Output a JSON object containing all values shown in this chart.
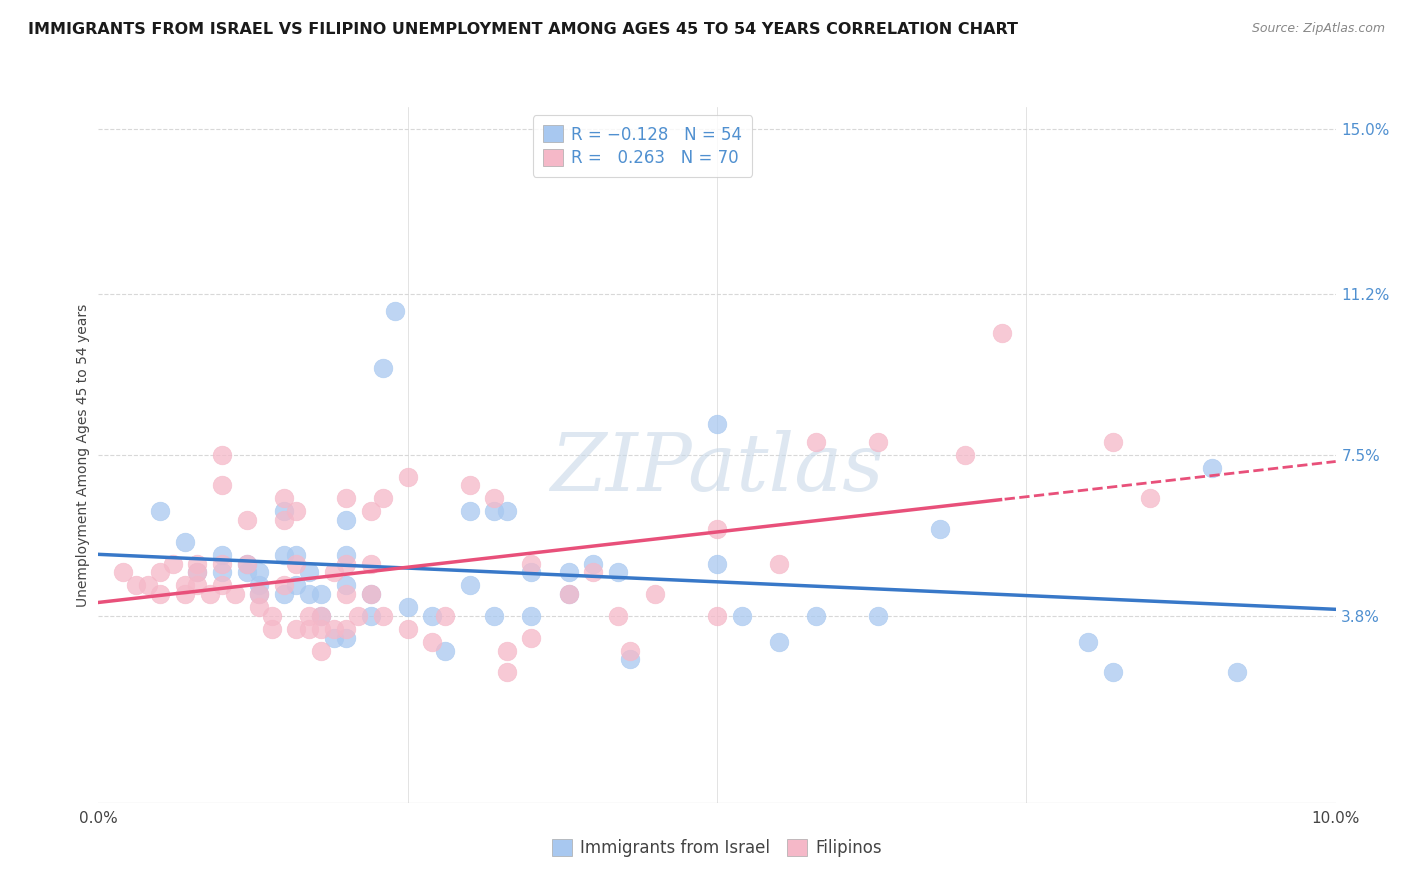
{
  "title": "IMMIGRANTS FROM ISRAEL VS FILIPINO UNEMPLOYMENT AMONG AGES 45 TO 54 YEARS CORRELATION CHART",
  "source": "Source: ZipAtlas.com",
  "ylabel": "Unemployment Among Ages 45 to 54 years",
  "xlim": [
    0.0,
    0.1
  ],
  "ylim": [
    -0.005,
    0.155
  ],
  "yticks": [
    0.038,
    0.075,
    0.112,
    0.15
  ],
  "ytick_labels": [
    "3.8%",
    "7.5%",
    "11.2%",
    "15.0%"
  ],
  "blue_color": "#a8c8f0",
  "pink_color": "#f5b8c8",
  "blue_line_color": "#3878c8",
  "pink_line_color": "#e8507a",
  "legend_blue_label": "Immigrants from Israel",
  "legend_pink_label": "Filipinos",
  "R_blue": -0.128,
  "N_blue": 54,
  "R_pink": 0.263,
  "N_pink": 70,
  "blue_scatter": [
    [
      0.005,
      0.062
    ],
    [
      0.007,
      0.055
    ],
    [
      0.008,
      0.048
    ],
    [
      0.01,
      0.052
    ],
    [
      0.01,
      0.048
    ],
    [
      0.012,
      0.048
    ],
    [
      0.012,
      0.05
    ],
    [
      0.013,
      0.048
    ],
    [
      0.013,
      0.043
    ],
    [
      0.013,
      0.045
    ],
    [
      0.015,
      0.043
    ],
    [
      0.015,
      0.062
    ],
    [
      0.015,
      0.052
    ],
    [
      0.016,
      0.052
    ],
    [
      0.016,
      0.045
    ],
    [
      0.017,
      0.048
    ],
    [
      0.017,
      0.043
    ],
    [
      0.018,
      0.043
    ],
    [
      0.018,
      0.038
    ],
    [
      0.019,
      0.033
    ],
    [
      0.02,
      0.06
    ],
    [
      0.02,
      0.052
    ],
    [
      0.02,
      0.045
    ],
    [
      0.02,
      0.033
    ],
    [
      0.022,
      0.043
    ],
    [
      0.022,
      0.038
    ],
    [
      0.023,
      0.095
    ],
    [
      0.024,
      0.108
    ],
    [
      0.025,
      0.04
    ],
    [
      0.027,
      0.038
    ],
    [
      0.028,
      0.03
    ],
    [
      0.03,
      0.062
    ],
    [
      0.03,
      0.045
    ],
    [
      0.032,
      0.062
    ],
    [
      0.032,
      0.038
    ],
    [
      0.033,
      0.062
    ],
    [
      0.035,
      0.048
    ],
    [
      0.035,
      0.038
    ],
    [
      0.038,
      0.048
    ],
    [
      0.038,
      0.043
    ],
    [
      0.04,
      0.05
    ],
    [
      0.042,
      0.048
    ],
    [
      0.043,
      0.028
    ],
    [
      0.05,
      0.082
    ],
    [
      0.05,
      0.05
    ],
    [
      0.052,
      0.038
    ],
    [
      0.055,
      0.032
    ],
    [
      0.058,
      0.038
    ],
    [
      0.063,
      0.038
    ],
    [
      0.068,
      0.058
    ],
    [
      0.08,
      0.032
    ],
    [
      0.082,
      0.025
    ],
    [
      0.09,
      0.072
    ],
    [
      0.092,
      0.025
    ]
  ],
  "pink_scatter": [
    [
      0.002,
      0.048
    ],
    [
      0.003,
      0.045
    ],
    [
      0.004,
      0.045
    ],
    [
      0.005,
      0.048
    ],
    [
      0.005,
      0.043
    ],
    [
      0.006,
      0.05
    ],
    [
      0.007,
      0.045
    ],
    [
      0.007,
      0.043
    ],
    [
      0.008,
      0.05
    ],
    [
      0.008,
      0.048
    ],
    [
      0.008,
      0.045
    ],
    [
      0.009,
      0.043
    ],
    [
      0.01,
      0.075
    ],
    [
      0.01,
      0.068
    ],
    [
      0.01,
      0.05
    ],
    [
      0.01,
      0.045
    ],
    [
      0.011,
      0.043
    ],
    [
      0.012,
      0.06
    ],
    [
      0.012,
      0.05
    ],
    [
      0.013,
      0.043
    ],
    [
      0.013,
      0.04
    ],
    [
      0.014,
      0.038
    ],
    [
      0.014,
      0.035
    ],
    [
      0.015,
      0.065
    ],
    [
      0.015,
      0.06
    ],
    [
      0.015,
      0.045
    ],
    [
      0.016,
      0.062
    ],
    [
      0.016,
      0.05
    ],
    [
      0.016,
      0.035
    ],
    [
      0.017,
      0.038
    ],
    [
      0.017,
      0.035
    ],
    [
      0.018,
      0.038
    ],
    [
      0.018,
      0.035
    ],
    [
      0.018,
      0.03
    ],
    [
      0.019,
      0.048
    ],
    [
      0.019,
      0.035
    ],
    [
      0.02,
      0.065
    ],
    [
      0.02,
      0.05
    ],
    [
      0.02,
      0.043
    ],
    [
      0.02,
      0.035
    ],
    [
      0.021,
      0.038
    ],
    [
      0.022,
      0.062
    ],
    [
      0.022,
      0.05
    ],
    [
      0.022,
      0.043
    ],
    [
      0.023,
      0.065
    ],
    [
      0.023,
      0.038
    ],
    [
      0.025,
      0.07
    ],
    [
      0.025,
      0.035
    ],
    [
      0.027,
      0.032
    ],
    [
      0.028,
      0.038
    ],
    [
      0.03,
      0.068
    ],
    [
      0.032,
      0.065
    ],
    [
      0.033,
      0.03
    ],
    [
      0.033,
      0.025
    ],
    [
      0.035,
      0.05
    ],
    [
      0.035,
      0.033
    ],
    [
      0.038,
      0.043
    ],
    [
      0.04,
      0.048
    ],
    [
      0.042,
      0.038
    ],
    [
      0.043,
      0.03
    ],
    [
      0.045,
      0.043
    ],
    [
      0.05,
      0.058
    ],
    [
      0.05,
      0.038
    ],
    [
      0.055,
      0.05
    ],
    [
      0.058,
      0.078
    ],
    [
      0.063,
      0.078
    ],
    [
      0.07,
      0.075
    ],
    [
      0.073,
      0.103
    ],
    [
      0.082,
      0.078
    ],
    [
      0.085,
      0.065
    ]
  ],
  "grid_color": "#d8d8d8",
  "background_color": "#ffffff",
  "title_fontsize": 11.5,
  "axis_label_fontsize": 10,
  "tick_fontsize": 11,
  "legend_fontsize": 12,
  "watermark_text": "ZIPatlas",
  "watermark_color": "#c8d8e8",
  "watermark_alpha": 0.6
}
